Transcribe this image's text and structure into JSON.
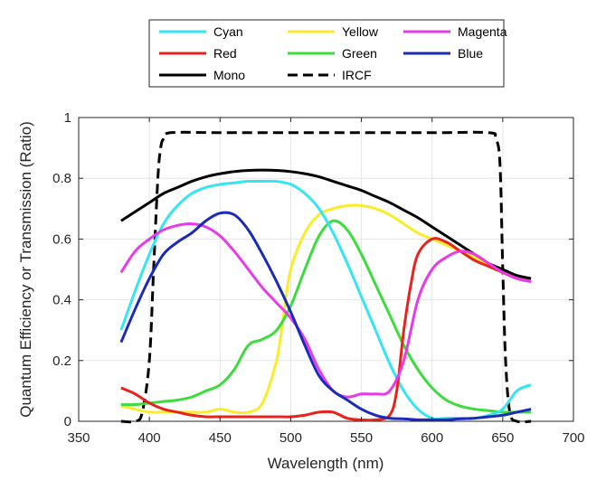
{
  "chart_data": {
    "type": "line",
    "xlabel": "Wavelength (nm)",
    "ylabel": "Quantum Efficiency or Transmission (Ratio)",
    "xlim": [
      350,
      700
    ],
    "ylim": [
      0,
      1
    ],
    "xticks": [
      350,
      400,
      450,
      500,
      550,
      600,
      650,
      700
    ],
    "yticks": [
      0,
      0.2,
      0.4,
      0.6,
      0.8,
      1
    ],
    "xtick_labels": [
      "350",
      "400",
      "450",
      "500",
      "550",
      "600",
      "650",
      "700"
    ],
    "ytick_labels": [
      "0",
      "0.2",
      "0.4",
      "0.6",
      "0.8",
      "1"
    ],
    "grid": true,
    "legend_position": "top-center",
    "series": [
      {
        "name": "Cyan",
        "color": "#33e6f2",
        "dash": "solid",
        "x": [
          380,
          390,
          400,
          410,
          420,
          430,
          440,
          450,
          460,
          470,
          480,
          490,
          500,
          510,
          520,
          530,
          540,
          550,
          560,
          570,
          580,
          590,
          600,
          610,
          620,
          630,
          640,
          650,
          660,
          670
        ],
        "y": [
          0.3,
          0.43,
          0.55,
          0.65,
          0.71,
          0.75,
          0.77,
          0.78,
          0.785,
          0.79,
          0.79,
          0.79,
          0.78,
          0.75,
          0.7,
          0.62,
          0.52,
          0.41,
          0.3,
          0.19,
          0.1,
          0.04,
          0.01,
          0.01,
          0.01,
          0.01,
          0.02,
          0.04,
          0.1,
          0.12
        ]
      },
      {
        "name": "Red",
        "color": "#e8221c",
        "dash": "solid",
        "x": [
          380,
          390,
          400,
          410,
          420,
          430,
          440,
          450,
          460,
          470,
          480,
          490,
          500,
          510,
          520,
          530,
          540,
          550,
          560,
          570,
          575,
          580,
          585,
          590,
          600,
          610,
          620,
          630,
          640,
          650,
          660,
          670
        ],
        "y": [
          0.11,
          0.09,
          0.06,
          0.04,
          0.03,
          0.02,
          0.015,
          0.015,
          0.015,
          0.015,
          0.015,
          0.015,
          0.015,
          0.02,
          0.03,
          0.03,
          0.01,
          0.005,
          0.005,
          0.02,
          0.1,
          0.3,
          0.45,
          0.55,
          0.6,
          0.59,
          0.56,
          0.53,
          0.51,
          0.49,
          0.47,
          0.46
        ]
      },
      {
        "name": "Mono",
        "color": "#000000",
        "dash": "solid",
        "x": [
          380,
          390,
          400,
          410,
          420,
          430,
          440,
          450,
          460,
          470,
          480,
          490,
          500,
          510,
          520,
          530,
          540,
          550,
          560,
          570,
          580,
          590,
          600,
          610,
          620,
          630,
          640,
          650,
          660,
          670
        ],
        "y": [
          0.66,
          0.69,
          0.72,
          0.75,
          0.77,
          0.79,
          0.805,
          0.815,
          0.822,
          0.826,
          0.827,
          0.826,
          0.822,
          0.815,
          0.805,
          0.79,
          0.775,
          0.76,
          0.74,
          0.72,
          0.695,
          0.67,
          0.64,
          0.61,
          0.58,
          0.55,
          0.52,
          0.5,
          0.48,
          0.47
        ]
      },
      {
        "name": "Yellow",
        "color": "#f8ec2c",
        "dash": "solid",
        "x": [
          380,
          390,
          400,
          410,
          420,
          430,
          440,
          450,
          460,
          470,
          480,
          490,
          495,
          500,
          510,
          520,
          530,
          540,
          550,
          560,
          570,
          580,
          590,
          600,
          610,
          620,
          630,
          640,
          650,
          660,
          670
        ],
        "y": [
          0.05,
          0.04,
          0.03,
          0.03,
          0.03,
          0.03,
          0.03,
          0.04,
          0.03,
          0.03,
          0.06,
          0.2,
          0.35,
          0.5,
          0.62,
          0.68,
          0.7,
          0.71,
          0.71,
          0.7,
          0.68,
          0.65,
          0.62,
          0.6,
          0.58,
          0.56,
          0.54,
          0.51,
          0.49,
          0.47,
          0.46
        ]
      },
      {
        "name": "Green",
        "color": "#3cdc3c",
        "dash": "solid",
        "x": [
          380,
          390,
          400,
          410,
          420,
          430,
          440,
          450,
          460,
          470,
          480,
          490,
          500,
          510,
          520,
          530,
          540,
          550,
          560,
          570,
          580,
          590,
          600,
          610,
          620,
          630,
          640,
          650,
          660,
          670
        ],
        "y": [
          0.055,
          0.055,
          0.06,
          0.065,
          0.07,
          0.08,
          0.1,
          0.12,
          0.17,
          0.25,
          0.27,
          0.3,
          0.38,
          0.5,
          0.61,
          0.66,
          0.63,
          0.55,
          0.45,
          0.35,
          0.25,
          0.17,
          0.11,
          0.07,
          0.05,
          0.04,
          0.035,
          0.03,
          0.03,
          0.03
        ]
      },
      {
        "name": "IRCF",
        "color": "#000000",
        "dash": "dashed",
        "x": [
          380,
          390,
          395,
          400,
          403,
          406,
          408,
          410,
          415,
          450,
          500,
          550,
          600,
          640,
          645,
          648,
          650,
          652,
          655,
          660,
          670
        ],
        "y": [
          0,
          0,
          0.03,
          0.2,
          0.5,
          0.8,
          0.9,
          0.93,
          0.95,
          0.95,
          0.95,
          0.95,
          0.95,
          0.95,
          0.93,
          0.85,
          0.5,
          0.2,
          0.03,
          0,
          0
        ]
      },
      {
        "name": "Magenta",
        "color": "#e83ae8",
        "dash": "solid",
        "x": [
          380,
          390,
          400,
          410,
          420,
          430,
          440,
          450,
          460,
          470,
          480,
          490,
          500,
          510,
          520,
          530,
          540,
          550,
          560,
          570,
          580,
          590,
          600,
          610,
          620,
          630,
          640,
          650,
          660,
          670
        ],
        "y": [
          0.49,
          0.56,
          0.6,
          0.63,
          0.645,
          0.65,
          0.64,
          0.61,
          0.56,
          0.5,
          0.44,
          0.39,
          0.34,
          0.27,
          0.17,
          0.1,
          0.08,
          0.09,
          0.09,
          0.1,
          0.2,
          0.4,
          0.5,
          0.54,
          0.56,
          0.55,
          0.52,
          0.49,
          0.47,
          0.46
        ]
      },
      {
        "name": "Blue",
        "color": "#1c2ab8",
        "dash": "solid",
        "x": [
          380,
          390,
          400,
          410,
          420,
          430,
          440,
          450,
          460,
          470,
          480,
          490,
          500,
          510,
          520,
          530,
          540,
          550,
          560,
          570,
          580,
          590,
          600,
          610,
          620,
          630,
          640,
          650,
          660,
          670
        ],
        "y": [
          0.26,
          0.37,
          0.47,
          0.55,
          0.59,
          0.62,
          0.66,
          0.685,
          0.68,
          0.63,
          0.55,
          0.46,
          0.36,
          0.25,
          0.15,
          0.1,
          0.07,
          0.04,
          0.02,
          0.01,
          0.008,
          0.005,
          0.005,
          0.005,
          0.008,
          0.01,
          0.015,
          0.02,
          0.03,
          0.04
        ]
      }
    ]
  }
}
